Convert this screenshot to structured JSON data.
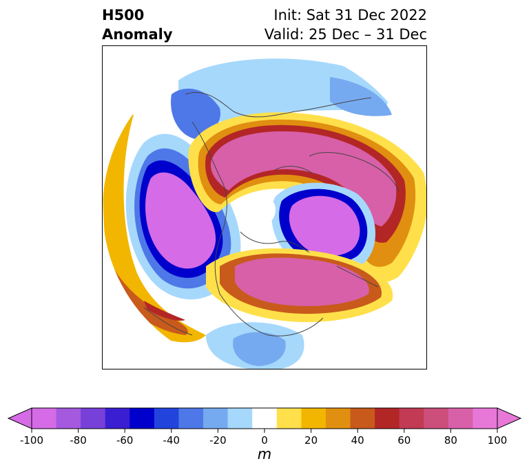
{
  "header": {
    "title_line1": "H500",
    "title_line2": "Anomaly",
    "init": "Init: Sat 31 Dec 2022",
    "valid": "Valid: 25 Dec – 31 Dec"
  },
  "map": {
    "projection": "north-polar-stereographic",
    "variable": "500 hPa geopotential height anomaly",
    "features": [
      {
        "name": "north-pacific-trough",
        "sign": "negative",
        "peak": -100
      },
      {
        "name": "greenland-atlantic-ridge",
        "sign": "positive",
        "peak": 100
      },
      {
        "name": "eurasian-arctic-trough",
        "sign": "negative",
        "peak": -100
      },
      {
        "name": "north-america-ridge",
        "sign": "positive",
        "peak": 100
      },
      {
        "name": "southeast-us-trough",
        "sign": "negative",
        "peak": -40
      }
    ]
  },
  "colorbar": {
    "unit": "m",
    "ticks": [
      "-100",
      "-80",
      "-60",
      "-40",
      "-20",
      "0",
      "20",
      "40",
      "60",
      "80",
      "100"
    ],
    "colors": [
      "#d56be6",
      "#a459df",
      "#7741d9",
      "#3a1ed2",
      "#0000cc",
      "#2244dd",
      "#4e78e8",
      "#76aaf0",
      "#a6d8fc",
      "#ffffff",
      "#ffe04a",
      "#f2b600",
      "#e08f10",
      "#c85a1c",
      "#b32626",
      "#c33a55",
      "#cc4e7a",
      "#d860a8",
      "#e778d8"
    ],
    "extend": "both"
  }
}
